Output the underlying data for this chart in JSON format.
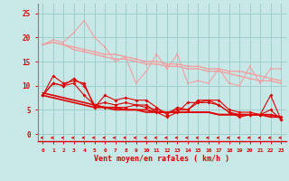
{
  "x": [
    0,
    1,
    2,
    3,
    4,
    5,
    6,
    7,
    8,
    9,
    10,
    11,
    12,
    13,
    14,
    15,
    16,
    17,
    18,
    19,
    20,
    21,
    22,
    23
  ],
  "light_line1": [
    18.5,
    19.5,
    19.0,
    21.0,
    23.5,
    20.0,
    18.0,
    15.0,
    16.0,
    10.5,
    13.0,
    16.5,
    13.5,
    16.5,
    10.5,
    11.0,
    10.5,
    13.5,
    10.5,
    10.0,
    14.0,
    10.5,
    13.5,
    13.5
  ],
  "light_line2": [
    18.5,
    19.0,
    18.5,
    18.0,
    17.5,
    17.0,
    16.5,
    16.5,
    16.0,
    15.5,
    15.0,
    15.0,
    14.5,
    14.5,
    14.0,
    14.0,
    13.5,
    13.5,
    13.0,
    13.0,
    12.5,
    12.0,
    11.5,
    11.0
  ],
  "light_line3": [
    18.5,
    19.0,
    18.5,
    17.5,
    17.0,
    16.5,
    16.0,
    15.5,
    15.5,
    15.0,
    14.5,
    14.5,
    14.0,
    14.0,
    13.5,
    13.5,
    13.0,
    13.0,
    12.5,
    12.0,
    11.5,
    11.0,
    11.0,
    10.5
  ],
  "red_line1": [
    8.0,
    12.0,
    10.5,
    11.0,
    10.5,
    5.5,
    8.0,
    7.0,
    7.5,
    7.0,
    7.0,
    5.5,
    4.0,
    5.5,
    5.0,
    7.0,
    7.0,
    7.0,
    5.0,
    4.5,
    4.5,
    4.0,
    8.0,
    3.0
  ],
  "red_line2": [
    8.0,
    10.5,
    10.0,
    11.5,
    10.0,
    6.0,
    6.5,
    6.0,
    6.5,
    6.0,
    5.5,
    5.0,
    4.5,
    5.0,
    5.0,
    6.5,
    6.5,
    6.0,
    4.5,
    4.0,
    4.0,
    4.0,
    4.0,
    3.5
  ],
  "red_line3": [
    8.0,
    10.5,
    10.0,
    10.5,
    8.0,
    6.0,
    5.5,
    5.5,
    5.5,
    6.0,
    6.0,
    4.5,
    3.5,
    4.5,
    6.5,
    6.5,
    7.0,
    6.0,
    4.5,
    3.5,
    4.0,
    4.0,
    5.0,
    3.0
  ],
  "red_trend1": [
    8.0,
    7.5,
    7.0,
    6.5,
    6.0,
    5.5,
    5.5,
    5.0,
    5.0,
    5.0,
    4.5,
    4.5,
    4.5,
    4.5,
    4.5,
    4.5,
    4.5,
    4.0,
    4.0,
    4.0,
    4.0,
    4.0,
    3.5,
    3.5
  ],
  "red_trend2": [
    8.5,
    8.0,
    7.5,
    7.0,
    6.5,
    6.0,
    5.5,
    5.5,
    5.0,
    5.0,
    5.0,
    4.5,
    4.5,
    4.5,
    4.5,
    4.5,
    4.5,
    4.0,
    4.0,
    4.0,
    4.0,
    4.0,
    4.0,
    3.5
  ],
  "bg_color": "#c8e8e8",
  "grid_color": "#9ecece",
  "light_color": "#f0a0a0",
  "red_color": "#dd0000",
  "xlabel": "Vent moyen/en rafales ( km/h )",
  "ylim": [
    -1.5,
    27
  ],
  "xlim": [
    -0.5,
    23.5
  ]
}
